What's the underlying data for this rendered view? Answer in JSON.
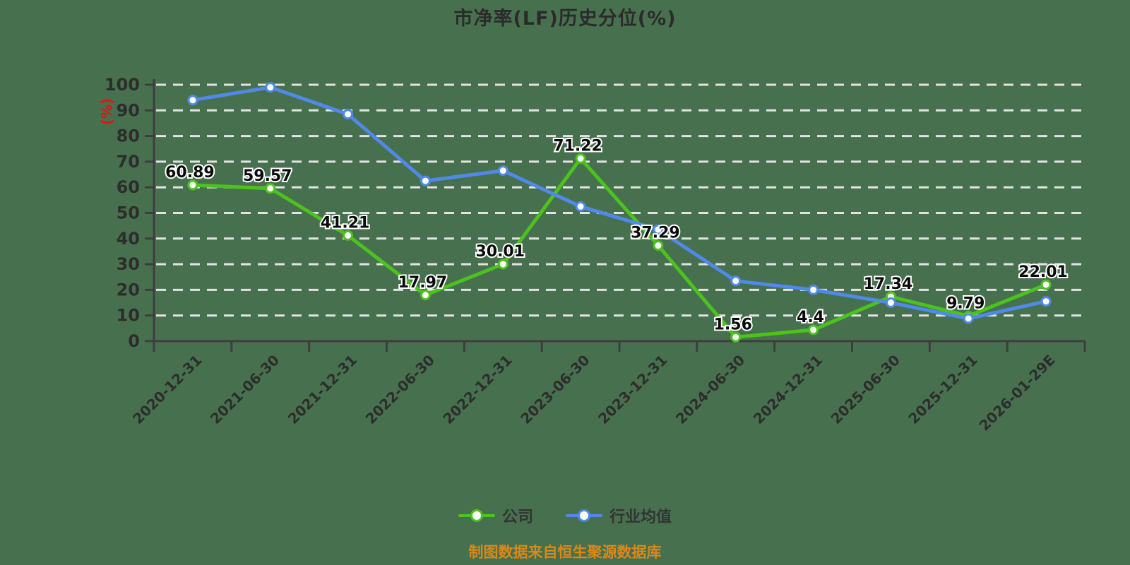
{
  "title": {
    "text": "市净率(LF)历史分位(%)"
  },
  "caption": {
    "text": "制图数据来自恒生聚源数据库",
    "color": "#d8891a"
  },
  "colors": {
    "background": "#47714E",
    "gridline": "#e3e3e3",
    "axis": "#3d3d3d",
    "tick_text": "#2d2d2d",
    "title_text": "#2b2b2b",
    "y_axis_title": "#e01515",
    "company_series": "#4CC21E",
    "industry_series": "#5089E8",
    "marker_fill": "#ffffff",
    "data_label_text": "#0b0b0b",
    "data_label_halo": "#ffffff",
    "caption_text": "#d8891a"
  },
  "chart_data": {
    "type": "line",
    "title": "市净率(LF)历史分位(%)",
    "ylabel": "(%)",
    "xlabel": "",
    "ylim": [
      0,
      100
    ],
    "yticks": [
      0,
      10,
      20,
      30,
      40,
      50,
      60,
      70,
      80,
      90,
      100
    ],
    "grid": "horizontal white dashed lines, on",
    "legend_position": "bottom-center",
    "categories": [
      "2020-12-31",
      "2021-06-30",
      "2021-12-31",
      "2022-06-30",
      "2022-12-31",
      "2023-06-30",
      "2023-12-31",
      "2024-06-30",
      "2024-12-31",
      "2025-06-30",
      "2025-12-31",
      "2026-01-29E"
    ],
    "series": [
      {
        "name": "公司",
        "color": "#4CC21E",
        "values": [
          60.89,
          59.57,
          41.21,
          17.97,
          30.01,
          71.22,
          37.29,
          1.56,
          4.4,
          17.34,
          9.79,
          22.01
        ],
        "data_labels": true
      },
      {
        "name": "行业均值",
        "color": "#5089E8",
        "values": [
          94,
          99,
          88.5,
          62.5,
          66.5,
          52.5,
          43.5,
          23.5,
          20,
          15,
          8.8,
          15.5
        ],
        "data_labels": false,
        "estimated": true
      }
    ]
  }
}
